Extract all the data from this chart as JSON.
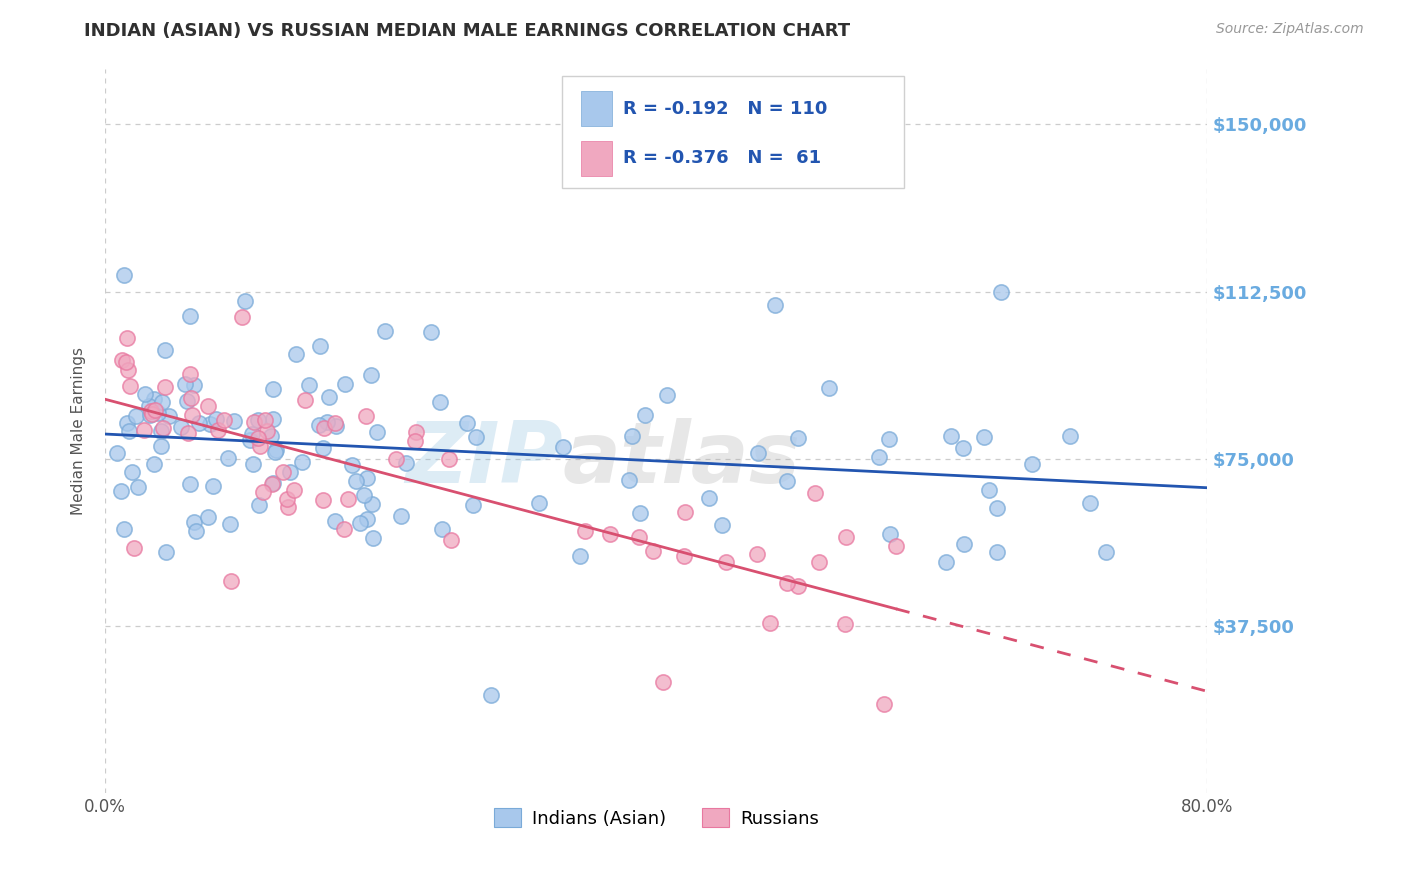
{
  "title": "INDIAN (ASIAN) VS RUSSIAN MEDIAN MALE EARNINGS CORRELATION CHART",
  "source": "Source: ZipAtlas.com",
  "ylabel": "Median Male Earnings",
  "xlim": [
    0.0,
    80.0
  ],
  "ylim": [
    0,
    162500
  ],
  "yticks": [
    37500,
    75000,
    112500,
    150000
  ],
  "ytick_labels": [
    "$37,500",
    "$75,000",
    "$112,500",
    "$150,000"
  ],
  "blue_R": -0.192,
  "blue_N": 110,
  "pink_R": -0.376,
  "pink_N": 61,
  "blue_color": "#a8c8ec",
  "pink_color": "#f0a8c0",
  "blue_edge_color": "#7aaad8",
  "pink_edge_color": "#e878a0",
  "blue_line_color": "#2255b0",
  "pink_line_color": "#d85070",
  "background_color": "#ffffff",
  "grid_color": "#cccccc",
  "title_color": "#303030",
  "tick_label_color": "#6aabe0",
  "legend_label_blue": "Indians (Asian)",
  "legend_label_pink": "Russians"
}
